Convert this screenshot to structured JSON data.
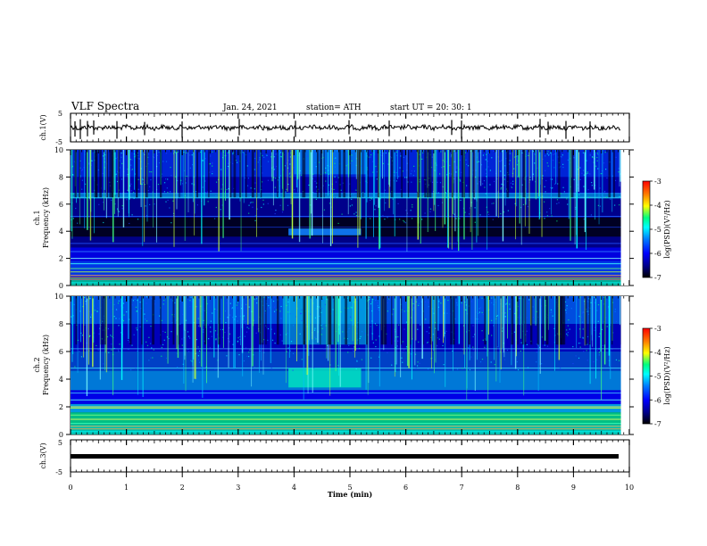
{
  "header": {
    "title": "VLF Spectra",
    "date": "Jan. 24, 2021",
    "station": "station= ATH",
    "start_ut": "start UT =   20: 30: 1"
  },
  "panels": {
    "ch1_voltage": {
      "ylabel": "ch.1(V)",
      "ticks": [
        "5",
        "-5"
      ]
    },
    "ch1_spec": {
      "ylabel_top": "ch.1",
      "ylabel_bottom": "Frequency (kHz)",
      "ticks": [
        "10",
        "8",
        "6",
        "4",
        "2",
        "0"
      ]
    },
    "ch2_spec": {
      "ylabel_top": "ch.2",
      "ylabel_bottom": "Frequency (kHz)",
      "ticks": [
        "10",
        "8",
        "6",
        "4",
        "2",
        "0"
      ]
    },
    "ch3_voltage": {
      "ylabel": "ch.3(V)",
      "ticks": [
        "5",
        "-5"
      ]
    }
  },
  "colorbar": {
    "label": "log(PSD)(V²/Hz)",
    "ticks": [
      "-3",
      "-4",
      "-5",
      "-6",
      "-7"
    ]
  },
  "colors": {
    "background": "#000040",
    "colormap": [
      "#000000",
      "#00008b",
      "#0000ff",
      "#0080ff",
      "#00ffff",
      "#00ff80",
      "#ffff00",
      "#ff8000",
      "#ff0000"
    ]
  },
  "chart_data": {
    "type": "heatmap",
    "xlabel": "Time (min)",
    "xlim": [
      0,
      10
    ],
    "x_ticks": [
      "0",
      "1",
      "2",
      "3",
      "4",
      "5",
      "6",
      "7",
      "8",
      "9",
      "10"
    ],
    "ylim_freq_khz": [
      0,
      10
    ],
    "ylim_voltage": [
      -5,
      5
    ],
    "color_range_log_psd": [
      -7,
      -3
    ],
    "data_end_min": 9.85,
    "features": {
      "enhanced_band_time_min": [
        3.9,
        5.2
      ],
      "enhanced_band_freq_khz": [
        3.7,
        4.2
      ]
    }
  }
}
